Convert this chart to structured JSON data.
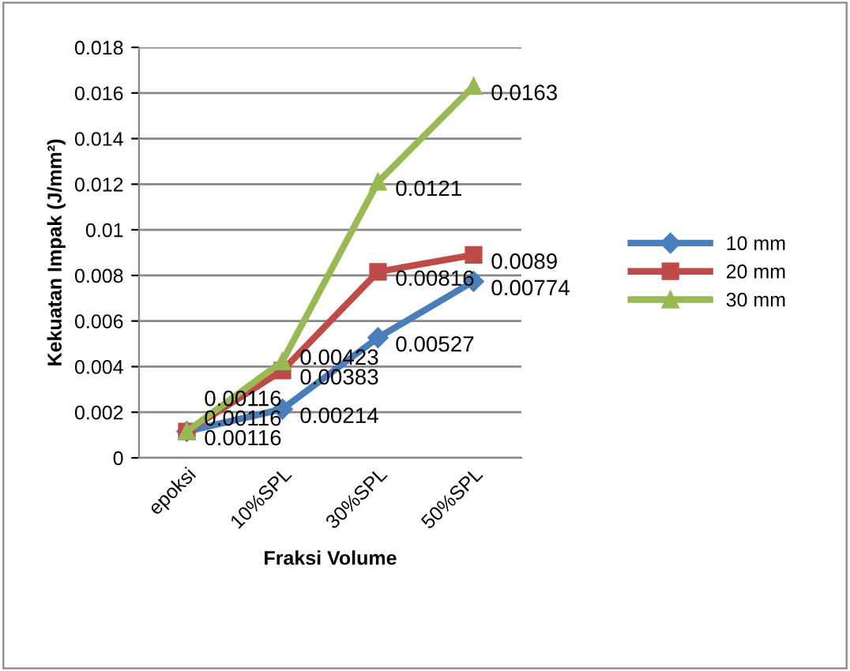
{
  "chart_data": {
    "type": "line",
    "xlabel": "Fraksi Volume",
    "ylabel": "Kekuatan Impak (J/mm²)",
    "categories": [
      "epoksi",
      "10%SPL",
      "30%SPL",
      "50%SPL"
    ],
    "series": [
      {
        "name": "10 mm",
        "color": "#4a7ebb",
        "marker": "diamond",
        "values": [
          0.00116,
          0.00214,
          0.00527,
          0.00774
        ]
      },
      {
        "name": "20 mm",
        "color": "#be4b48",
        "marker": "square",
        "values": [
          0.00116,
          0.00383,
          0.00816,
          0.0089
        ]
      },
      {
        "name": "30 mm",
        "color": "#98b954",
        "marker": "triangle",
        "values": [
          0.00116,
          0.00423,
          0.0121,
          0.0163
        ]
      }
    ],
    "ylim": [
      0,
      0.018
    ],
    "yticks": [
      0,
      0.002,
      0.004,
      0.006,
      0.008,
      0.01,
      0.012,
      0.014,
      0.016,
      0.018
    ],
    "grid": "y",
    "legend": "right",
    "data_labels": true
  }
}
